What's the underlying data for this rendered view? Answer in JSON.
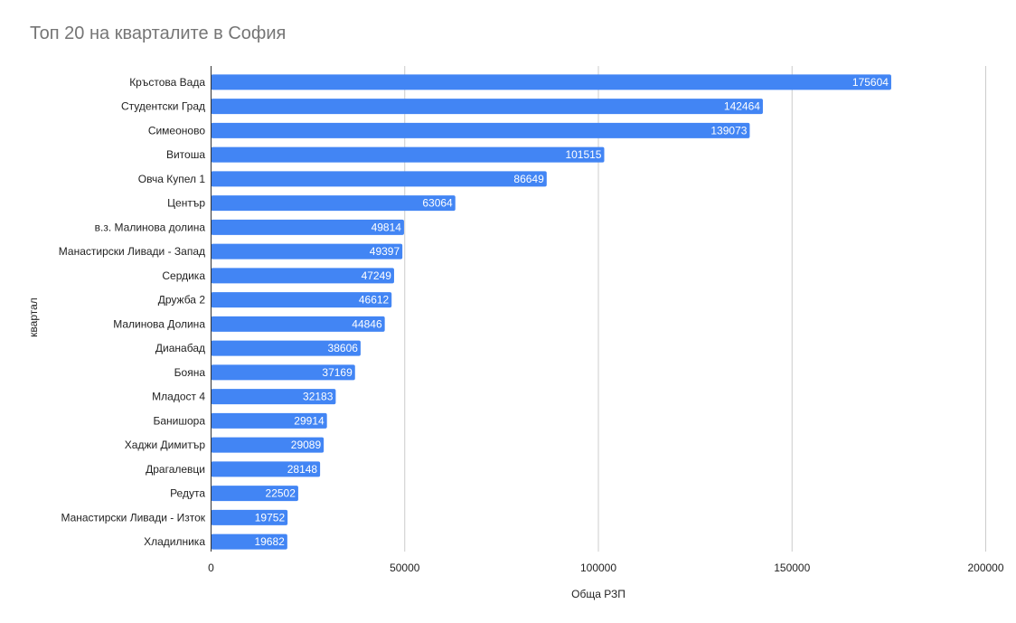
{
  "chart_data": {
    "type": "bar",
    "orientation": "horizontal",
    "title": "Топ 20 на кварталите в София",
    "xlabel": "Обща РЗП",
    "ylabel": "квартал",
    "xlim": [
      0,
      200000
    ],
    "x_ticks": [
      0,
      50000,
      100000,
      150000,
      200000
    ],
    "grid": true,
    "legend": "none",
    "bar_color": "#4285f4",
    "categories": [
      "Кръстова Вада",
      "Студентски Град",
      "Симеоново",
      "Витоша",
      "Овча Купел 1",
      "Център",
      "в.з. Малинова долина",
      "Манастирски Ливади - Запад",
      "Сердика",
      "Дружба 2",
      "Малинова Долина",
      "Дианабад",
      "Бояна",
      "Младост 4",
      "Банишора",
      "Хаджи Димитър",
      "Драгалевци",
      "Редута",
      "Манастирски Ливади - Изток",
      "Хладилника"
    ],
    "values": [
      175604,
      142464,
      139073,
      101515,
      86649,
      63064,
      49814,
      49397,
      47249,
      46612,
      44846,
      38606,
      37169,
      32183,
      29914,
      29089,
      28148,
      22502,
      19752,
      19682
    ]
  }
}
